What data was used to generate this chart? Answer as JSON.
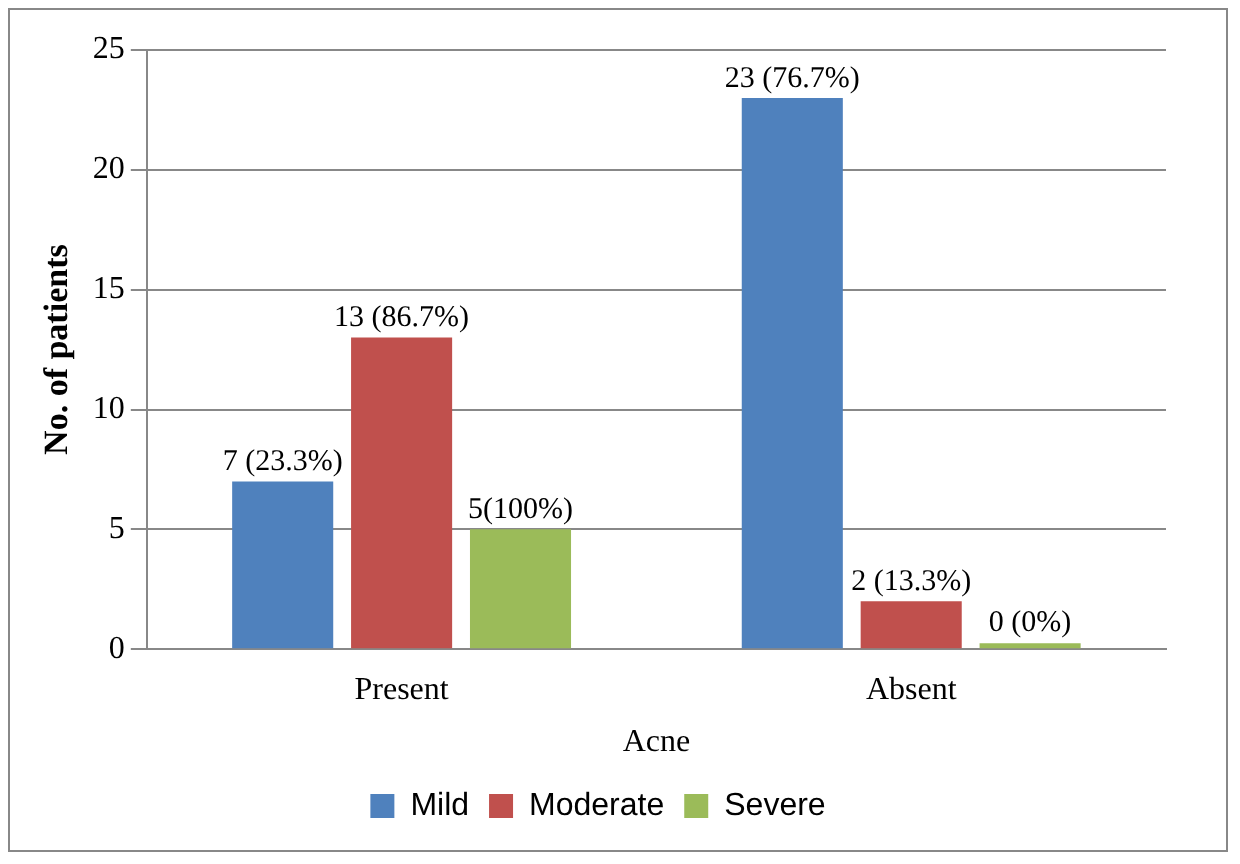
{
  "chart_data": {
    "type": "bar",
    "xlabel": "Acne",
    "ylabel": "No. of patients",
    "categories": [
      "Present",
      "Absent"
    ],
    "series": [
      {
        "name": "Mild",
        "color": "#4f81bd",
        "values": [
          7,
          23
        ],
        "value_labels": [
          "7 (23.3%)",
          "23 (76.7%)"
        ]
      },
      {
        "name": "Moderate",
        "color": "#c0504d",
        "values": [
          13,
          2
        ],
        "value_labels": [
          "13 (86.7%)",
          "2 (13.3%)"
        ]
      },
      {
        "name": "Severe",
        "color": "#9bbb59",
        "values": [
          5,
          0
        ],
        "value_labels": [
          "5(100%)",
          "0 (0%)"
        ]
      }
    ],
    "ylim": [
      0,
      25
    ],
    "yticks": [
      0,
      5,
      10,
      15,
      20,
      25
    ],
    "grid": "y",
    "legend": "bottom"
  }
}
